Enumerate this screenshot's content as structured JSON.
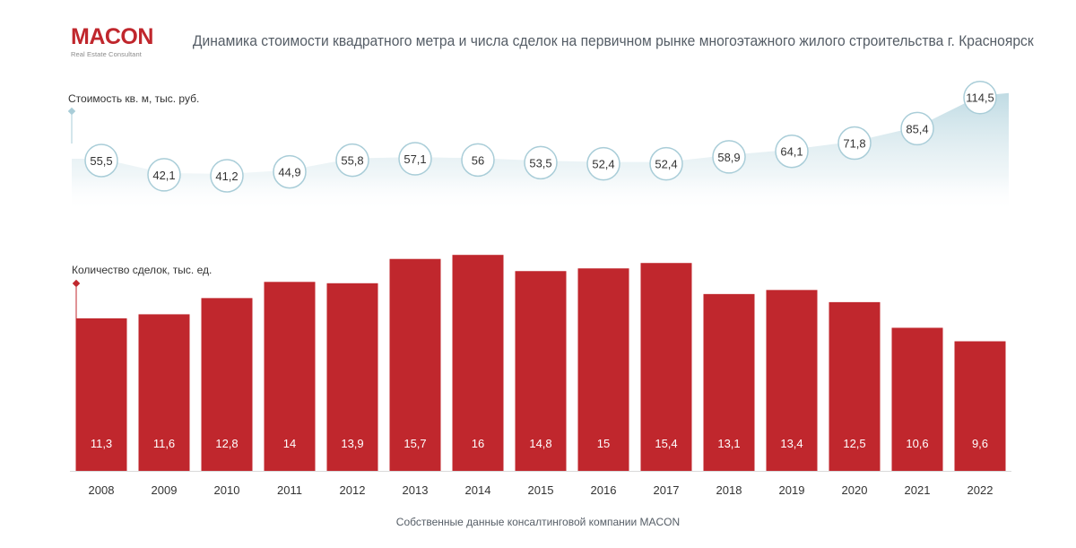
{
  "logo": {
    "name": "MACON",
    "tagline": "Real Estate Consultant"
  },
  "title": "Динамика стоимости квадратного метра и числа сделок на первичном рынке многоэтажного жилого строительства г. Красноярск",
  "footer": "Собственные данные консалтинговой компании MACON",
  "colors": {
    "accent": "#c0272d",
    "area_fill": "#cfe3ea",
    "bubble_stroke": "#a9cdd8",
    "text": "#333333"
  },
  "chart_data": [
    {
      "type": "area",
      "ylabel": "Стоимость кв. м, тыс. руб.",
      "categories": [
        "2008",
        "2009",
        "2010",
        "2011",
        "2012",
        "2013",
        "2014",
        "2015",
        "2016",
        "2017",
        "2018",
        "2019",
        "2020",
        "2021",
        "2022"
      ],
      "values": [
        55.5,
        42.1,
        41.2,
        44.9,
        55.8,
        57.1,
        56,
        53.5,
        52.4,
        52.4,
        58.9,
        64.1,
        71.8,
        85.4,
        114.5
      ],
      "labels": [
        "55,5",
        "42,1",
        "41,2",
        "44,9",
        "55,8",
        "57,1",
        "56",
        "53,5",
        "52,4",
        "52,4",
        "58,9",
        "64,1",
        "71,8",
        "85,4",
        "114,5"
      ]
    },
    {
      "type": "bar",
      "ylabel": "Количество сделок, тыс. ед.",
      "categories": [
        "2008",
        "2009",
        "2010",
        "2011",
        "2012",
        "2013",
        "2014",
        "2015",
        "2016",
        "2017",
        "2018",
        "2019",
        "2020",
        "2021",
        "2022"
      ],
      "values": [
        11.3,
        11.6,
        12.8,
        14,
        13.9,
        15.7,
        16,
        14.8,
        15,
        15.4,
        13.1,
        13.4,
        12.5,
        10.6,
        9.6
      ],
      "labels": [
        "11,3",
        "11,6",
        "12,8",
        "14",
        "13,9",
        "15,7",
        "16",
        "14,8",
        "15",
        "15,4",
        "13,1",
        "13,4",
        "12,5",
        "10,6",
        "9,6"
      ],
      "color": "#c0272d"
    }
  ]
}
